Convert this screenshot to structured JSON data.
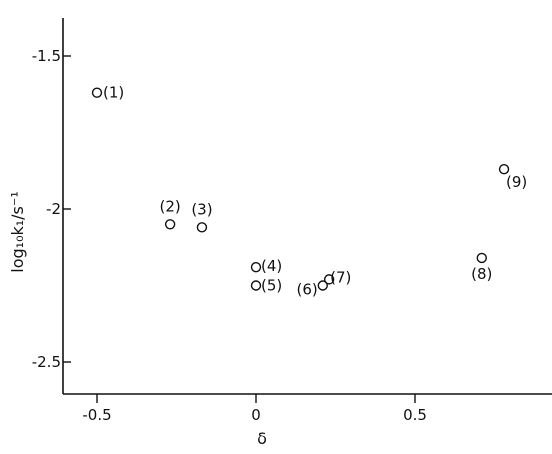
{
  "chart_data": {
    "type": "scatter",
    "xlabel": "δ",
    "ylabel": "log₁₀k₁/s⁻¹",
    "xlim": [
      -0.6,
      1.0
    ],
    "ylim": [
      -2.6,
      -1.3
    ],
    "x_ticks": [
      {
        "value": -0.5,
        "label": "-0.5"
      },
      {
        "value": 0,
        "label": "0"
      },
      {
        "value": 0.5,
        "label": "0.5"
      }
    ],
    "y_ticks": [
      {
        "value": -1.5,
        "label": "-1.5"
      },
      {
        "value": -2,
        "label": "-2"
      },
      {
        "value": -2.5,
        "label": "-2.5"
      }
    ],
    "points": [
      {
        "label": "(1)",
        "x": -0.5,
        "y": -1.62
      },
      {
        "label": "(2)",
        "x": -0.27,
        "y": -2.05
      },
      {
        "label": "(3)",
        "x": -0.17,
        "y": -2.06
      },
      {
        "label": "(4)",
        "x": 0.0,
        "y": -2.19
      },
      {
        "label": "(5)",
        "x": 0.0,
        "y": -2.25
      },
      {
        "label": "(6)",
        "x": 0.21,
        "y": -2.25
      },
      {
        "label": "(7)",
        "x": 0.23,
        "y": -2.23
      },
      {
        "label": "(8)",
        "x": 0.71,
        "y": -2.16
      },
      {
        "label": "(9)",
        "x": 0.78,
        "y": -1.87
      }
    ]
  }
}
